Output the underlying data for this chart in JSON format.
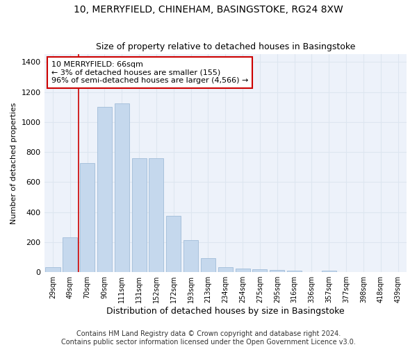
{
  "title": "10, MERRYFIELD, CHINEHAM, BASINGSTOKE, RG24 8XW",
  "subtitle": "Size of property relative to detached houses in Basingstoke",
  "xlabel": "Distribution of detached houses by size in Basingstoke",
  "ylabel": "Number of detached properties",
  "bar_color": "#c5d8ed",
  "bar_edge_color": "#a0bcd8",
  "categories": [
    "29sqm",
    "49sqm",
    "70sqm",
    "90sqm",
    "111sqm",
    "131sqm",
    "152sqm",
    "172sqm",
    "193sqm",
    "213sqm",
    "234sqm",
    "254sqm",
    "275sqm",
    "295sqm",
    "316sqm",
    "336sqm",
    "357sqm",
    "377sqm",
    "398sqm",
    "418sqm",
    "439sqm"
  ],
  "values": [
    35,
    230,
    725,
    1100,
    1125,
    760,
    760,
    375,
    215,
    95,
    35,
    25,
    20,
    15,
    10,
    0,
    10,
    0,
    0,
    0,
    0
  ],
  "annotation_text": "10 MERRYFIELD: 66sqm\n← 3% of detached houses are smaller (155)\n96% of semi-detached houses are larger (4,566) →",
  "annotation_box_color": "#ffffff",
  "annotation_box_edge": "#cc0000",
  "vline_x": 1.5,
  "vline_color": "#cc0000",
  "ylim": [
    0,
    1450
  ],
  "yticks": [
    0,
    200,
    400,
    600,
    800,
    1000,
    1200,
    1400
  ],
  "grid_color": "#dde6f0",
  "background_color": "#edf2fa",
  "footer": "Contains HM Land Registry data © Crown copyright and database right 2024.\nContains public sector information licensed under the Open Government Licence v3.0.",
  "title_fontsize": 10,
  "subtitle_fontsize": 9,
  "xlabel_fontsize": 9,
  "ylabel_fontsize": 8,
  "footer_fontsize": 7,
  "annot_fontsize": 8,
  "ytick_fontsize": 8,
  "xtick_fontsize": 7
}
